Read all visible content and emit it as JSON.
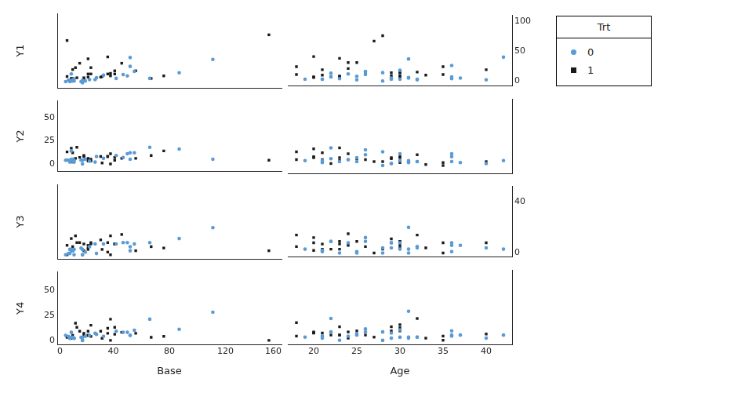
{
  "legend_title": "Trt",
  "chart_data": [
    {
      "type": "scatter",
      "y_label": "Y1",
      "xlim": [
        0,
        160
      ],
      "xticks": [],
      "ylim": [
        -8,
        110
      ],
      "yticks": [],
      "grid": false,
      "series": [
        {
          "name": "0",
          "color": "#5b9bd5",
          "marker": "circle",
          "x": [
            11,
            11,
            6,
            8,
            66,
            27,
            12,
            52,
            23,
            10,
            52,
            33,
            18,
            42,
            87,
            50,
            18,
            111,
            18,
            20,
            12,
            9,
            17,
            28,
            55,
            9,
            10,
            47
          ],
          "values": [
            5,
            3,
            2,
            4,
            7,
            5,
            6,
            40,
            5,
            14,
            26,
            12,
            4,
            7,
            16,
            11,
            0,
            37,
            3,
            3,
            3,
            3,
            2,
            8,
            18,
            2,
            3,
            13
          ]
        },
        {
          "name": "1",
          "color": "#1a1a1a",
          "marker": "square",
          "x": [
            76,
            38,
            19,
            10,
            19,
            24,
            31,
            14,
            11,
            67,
            41,
            7,
            22,
            13,
            46,
            36,
            38,
            7,
            36,
            11,
            151,
            22,
            41,
            32,
            56,
            24,
            16,
            22
          ],
          "values": [
            11,
            15,
            6,
            7,
            8,
            14,
            9,
            8,
            21,
            7,
            14,
            10,
            9,
            24,
            31,
            14,
            11,
            67,
            41,
            7,
            76,
            38,
            19,
            10,
            19,
            24,
            31,
            14
          ]
        }
      ]
    },
    {
      "type": "scatter",
      "xlim": [
        17,
        43
      ],
      "xticks": [],
      "ylim": [
        -8,
        110
      ],
      "yticks": [
        0,
        50,
        100
      ],
      "grid": false,
      "series": [
        {
          "name": "0",
          "color": "#5b9bd5",
          "marker": "circle",
          "x": [
            31,
            30,
            25,
            36,
            22,
            29,
            31,
            42,
            37,
            28,
            36,
            24,
            23,
            36,
            26,
            26,
            28,
            31,
            32,
            21,
            29,
            21,
            32,
            25,
            30,
            40,
            19,
            22
          ],
          "values": [
            5,
            3,
            2,
            4,
            7,
            5,
            6,
            40,
            5,
            14,
            26,
            12,
            4,
            7,
            16,
            11,
            0,
            37,
            3,
            3,
            3,
            3,
            2,
            8,
            18,
            2,
            3,
            13
          ]
        },
        {
          "name": "1",
          "color": "#1a1a1a",
          "marker": "square",
          "x": [
            18,
            32,
            20,
            20,
            23,
            30,
            29,
            23,
            24,
            30,
            29,
            21,
            30,
            18,
            24,
            30,
            35,
            27,
            20,
            22,
            28,
            23,
            40,
            33,
            21,
            35,
            25,
            26
          ],
          "values": [
            11,
            15,
            6,
            7,
            8,
            14,
            9,
            8,
            21,
            7,
            14,
            10,
            9,
            24,
            31,
            14,
            11,
            67,
            41,
            7,
            76,
            38,
            19,
            10,
            19,
            24,
            31,
            14
          ]
        }
      ]
    },
    {
      "type": "scatter",
      "y_label": "Y2",
      "xlim": [
        0,
        160
      ],
      "xticks": [],
      "ylim": [
        -8,
        68
      ],
      "yticks": [
        0,
        25,
        50
      ],
      "grid": false,
      "series": [
        {
          "name": "0",
          "color": "#5b9bd5",
          "marker": "circle",
          "x": [
            11,
            11,
            6,
            8,
            66,
            27,
            12,
            52,
            23,
            10,
            52,
            33,
            18,
            42,
            87,
            50,
            18,
            111,
            18,
            20,
            12,
            9,
            17,
            28,
            55,
            9,
            10,
            47
          ],
          "values": [
            3,
            5,
            4,
            4,
            18,
            2,
            4,
            5,
            3,
            14,
            12,
            6,
            4,
            9,
            16,
            11,
            0,
            5,
            4,
            5,
            2,
            3,
            4,
            8,
            12,
            2,
            5,
            7
          ]
        },
        {
          "name": "1",
          "color": "#1a1a1a",
          "marker": "square",
          "x": [
            76,
            38,
            19,
            10,
            19,
            24,
            31,
            14,
            11,
            67,
            41,
            7,
            22,
            13,
            46,
            36,
            38,
            7,
            36,
            11,
            151,
            22,
            41,
            32,
            56,
            24,
            16,
            22
          ],
          "values": [
            14,
            11,
            9,
            17,
            8,
            5,
            8,
            18,
            12,
            9,
            7,
            13,
            3,
            6,
            6,
            8,
            0,
            4,
            8,
            2,
            4,
            5,
            4,
            1,
            6,
            3,
            7,
            6
          ]
        }
      ]
    },
    {
      "type": "scatter",
      "xlim": [
        17,
        43
      ],
      "xticks": [],
      "ylim": [
        -8,
        68
      ],
      "yticks": [],
      "grid": false,
      "series": [
        {
          "name": "0",
          "color": "#5b9bd5",
          "marker": "circle",
          "x": [
            31,
            30,
            25,
            36,
            22,
            29,
            31,
            42,
            37,
            28,
            36,
            24,
            23,
            36,
            26,
            26,
            28,
            31,
            32,
            21,
            29,
            21,
            32,
            25,
            30,
            40,
            19,
            22
          ],
          "values": [
            3,
            5,
            4,
            4,
            18,
            2,
            4,
            5,
            3,
            14,
            12,
            6,
            4,
            9,
            16,
            11,
            0,
            5,
            4,
            5,
            2,
            3,
            4,
            8,
            12,
            2,
            5,
            7
          ]
        },
        {
          "name": "1",
          "color": "#1a1a1a",
          "marker": "square",
          "x": [
            18,
            32,
            20,
            20,
            23,
            30,
            29,
            23,
            24,
            30,
            29,
            21,
            30,
            18,
            24,
            30,
            35,
            27,
            20,
            22,
            28,
            23,
            40,
            33,
            21,
            35,
            25,
            26
          ],
          "values": [
            14,
            11,
            9,
            17,
            8,
            5,
            8,
            18,
            12,
            9,
            7,
            13,
            3,
            6,
            6,
            8,
            0,
            4,
            8,
            2,
            4,
            5,
            4,
            1,
            6,
            3,
            7,
            6
          ]
        }
      ]
    },
    {
      "type": "scatter",
      "y_label": "Y3",
      "xlim": [
        0,
        160
      ],
      "xticks": [],
      "ylim": [
        -3,
        52
      ],
      "yticks": [],
      "grid": false,
      "series": [
        {
          "name": "0",
          "color": "#5b9bd5",
          "marker": "circle",
          "x": [
            11,
            11,
            6,
            8,
            66,
            27,
            12,
            52,
            23,
            10,
            52,
            33,
            18,
            42,
            87,
            50,
            18,
            111,
            18,
            20,
            12,
            9,
            17,
            28,
            55,
            9,
            10,
            47
          ],
          "values": [
            3,
            3,
            0,
            1,
            9,
            8,
            0,
            3,
            6,
            4,
            6,
            8,
            0,
            8,
            12,
            9,
            0,
            20,
            4,
            2,
            4,
            1,
            5,
            1,
            8,
            4,
            3,
            9
          ]
        },
        {
          "name": "1",
          "color": "#1a1a1a",
          "marker": "square",
          "x": [
            76,
            38,
            19,
            10,
            19,
            24,
            31,
            14,
            11,
            67,
            41,
            7,
            22,
            13,
            46,
            36,
            38,
            7,
            36,
            11,
            151,
            22,
            41,
            32,
            56,
            24,
            16,
            22
          ],
          "values": [
            5,
            14,
            8,
            12,
            3,
            9,
            11,
            9,
            6,
            6,
            8,
            7,
            4,
            14,
            15,
            9,
            0,
            0,
            2,
            3,
            3,
            7,
            8,
            4,
            3,
            8,
            9,
            5
          ]
        }
      ]
    },
    {
      "type": "scatter",
      "xlim": [
        17,
        43
      ],
      "xticks": [],
      "ylim": [
        -3,
        52
      ],
      "yticks": [
        0,
        40
      ],
      "grid": false,
      "series": [
        {
          "name": "0",
          "color": "#5b9bd5",
          "marker": "circle",
          "x": [
            31,
            30,
            25,
            36,
            22,
            29,
            31,
            42,
            37,
            28,
            36,
            24,
            23,
            36,
            26,
            26,
            28,
            31,
            32,
            21,
            29,
            21,
            32,
            25,
            30,
            40,
            19,
            22
          ],
          "values": [
            3,
            3,
            0,
            1,
            9,
            8,
            0,
            3,
            6,
            4,
            6,
            8,
            0,
            8,
            12,
            9,
            0,
            20,
            4,
            2,
            4,
            1,
            5,
            1,
            8,
            4,
            3,
            9
          ]
        },
        {
          "name": "1",
          "color": "#1a1a1a",
          "marker": "square",
          "x": [
            18,
            32,
            20,
            20,
            23,
            30,
            29,
            23,
            24,
            30,
            29,
            21,
            30,
            18,
            24,
            30,
            35,
            27,
            20,
            22,
            28,
            23,
            40,
            33,
            21,
            35,
            25,
            26
          ],
          "values": [
            5,
            14,
            8,
            12,
            3,
            9,
            11,
            9,
            6,
            6,
            8,
            7,
            4,
            14,
            15,
            9,
            0,
            0,
            2,
            3,
            3,
            7,
            8,
            4,
            3,
            8,
            9,
            5
          ]
        }
      ]
    },
    {
      "type": "scatter",
      "y_label": "Y4",
      "x_label": "Base",
      "xlim": [
        0,
        160
      ],
      "xticks": [
        0,
        40,
        80,
        120,
        160
      ],
      "ylim": [
        -4,
        68
      ],
      "yticks": [
        0,
        25,
        50
      ],
      "grid": false,
      "series": [
        {
          "name": "0",
          "color": "#5b9bd5",
          "marker": "circle",
          "x": [
            11,
            11,
            6,
            8,
            66,
            27,
            12,
            52,
            23,
            10,
            52,
            33,
            18,
            42,
            87,
            50,
            18,
            111,
            18,
            20,
            12,
            9,
            17,
            28,
            55,
            9,
            10,
            47
          ],
          "values": [
            3,
            3,
            5,
            4,
            21,
            7,
            2,
            5,
            5,
            8,
            5,
            4,
            0,
            9,
            11,
            8,
            0,
            28,
            3,
            4,
            2,
            2,
            3,
            6,
            10,
            2,
            3,
            8
          ]
        },
        {
          "name": "1",
          "color": "#1a1a1a",
          "marker": "square",
          "x": [
            76,
            38,
            19,
            10,
            19,
            24,
            31,
            14,
            11,
            67,
            41,
            7,
            22,
            13,
            46,
            36,
            38,
            7,
            36,
            11,
            151,
            22,
            41,
            32,
            56,
            24,
            16,
            22
          ],
          "values": [
            4,
            21,
            7,
            8,
            5,
            15,
            9,
            13,
            2,
            3,
            13,
            4,
            9,
            17,
            8,
            12,
            0,
            3,
            7,
            5,
            0,
            5,
            6,
            2,
            7,
            4,
            9,
            5
          ]
        }
      ]
    },
    {
      "type": "scatter",
      "x_label": "Age",
      "xlim": [
        17,
        43
      ],
      "xticks": [
        20,
        25,
        30,
        35,
        40
      ],
      "ylim": [
        -4,
        68
      ],
      "yticks": [],
      "grid": false,
      "series": [
        {
          "name": "0",
          "color": "#5b9bd5",
          "marker": "circle",
          "x": [
            31,
            30,
            25,
            36,
            22,
            29,
            31,
            42,
            37,
            28,
            36,
            24,
            23,
            36,
            26,
            26,
            28,
            31,
            32,
            21,
            29,
            21,
            32,
            25,
            30,
            40,
            19,
            22
          ],
          "values": [
            3,
            3,
            5,
            4,
            21,
            7,
            2,
            5,
            5,
            8,
            5,
            4,
            0,
            9,
            11,
            8,
            0,
            28,
            3,
            4,
            2,
            2,
            3,
            6,
            10,
            2,
            3,
            8
          ]
        },
        {
          "name": "1",
          "color": "#1a1a1a",
          "marker": "square",
          "x": [
            18,
            32,
            20,
            20,
            23,
            30,
            29,
            23,
            24,
            30,
            29,
            21,
            30,
            18,
            24,
            30,
            35,
            27,
            20,
            22,
            28,
            23,
            40,
            33,
            21,
            35,
            25,
            26
          ],
          "values": [
            4,
            21,
            7,
            8,
            5,
            15,
            9,
            13,
            2,
            3,
            13,
            4,
            9,
            17,
            8,
            12,
            0,
            3,
            7,
            5,
            0,
            5,
            6,
            2,
            7,
            4,
            9,
            5
          ]
        }
      ]
    }
  ]
}
